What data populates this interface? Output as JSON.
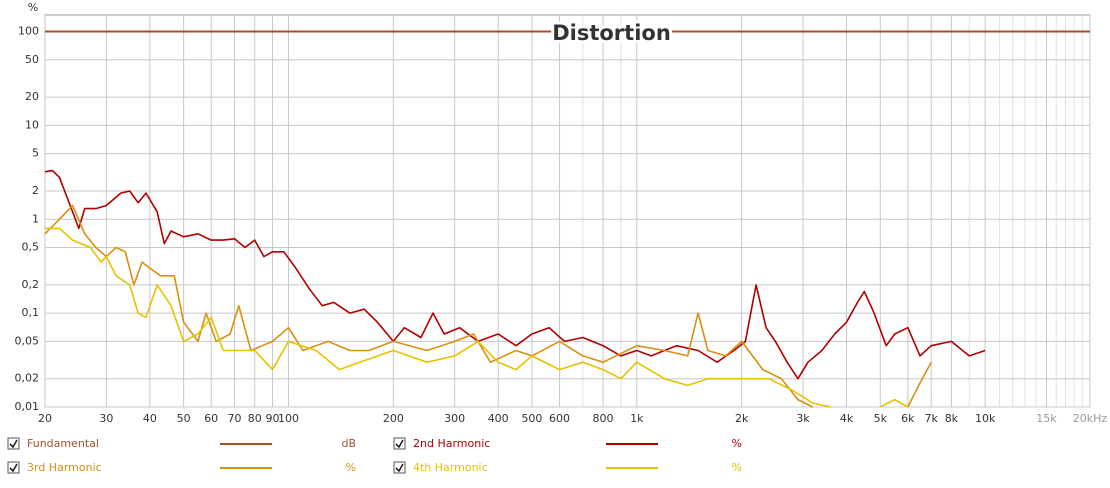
{
  "chart_data": {
    "type": "line",
    "title": "Distortion",
    "y_unit": "%",
    "xscale": "log",
    "yscale": "log",
    "grid": true,
    "xlim": [
      20,
      20000
    ],
    "ylim": [
      0.01,
      150
    ],
    "xticks": [
      20,
      30,
      40,
      50,
      60,
      70,
      80,
      90,
      100,
      200,
      300,
      400,
      500,
      600,
      800,
      {
        "value": 1000,
        "label": "1k"
      },
      {
        "value": 2000,
        "label": "2k"
      },
      {
        "value": 3000,
        "label": "3k"
      },
      {
        "value": 4000,
        "label": "4k"
      },
      {
        "value": 5000,
        "label": "5k"
      },
      {
        "value": 6000,
        "label": "6k"
      },
      {
        "value": 7000,
        "label": "7k"
      },
      {
        "value": 8000,
        "label": "8k"
      },
      {
        "value": 10000,
        "label": "10k"
      },
      {
        "value": 15000,
        "label": "15k"
      },
      {
        "value": 20000,
        "label": "20kHz"
      }
    ],
    "xgrid_minor": [
      700,
      900,
      9000,
      11000,
      12000,
      13000,
      14000,
      16000,
      17000,
      18000,
      19000
    ],
    "yticks": [
      100,
      50,
      20,
      10,
      5,
      2,
      1,
      {
        "value": 0.5,
        "label": "0,5"
      },
      {
        "value": 0.2,
        "label": "0,2"
      },
      {
        "value": 0.1,
        "label": "0,1"
      },
      {
        "value": 0.05,
        "label": "0,05"
      },
      {
        "value": 0.02,
        "label": "0,02"
      },
      {
        "value": 0.01,
        "label": "0,01"
      }
    ],
    "series": [
      {
        "name": "Fundamental",
        "unit": "dB",
        "color": "#a0522d",
        "x": [
          20,
          20000
        ],
        "values": [
          100,
          100
        ]
      },
      {
        "name": "2nd Harmonic",
        "unit": "%",
        "color": "#b00000",
        "x": [
          20,
          21,
          22,
          24,
          25,
          26,
          28,
          30,
          33,
          35,
          37,
          39,
          42,
          44,
          46,
          50,
          55,
          60,
          65,
          70,
          75,
          80,
          85,
          90,
          97,
          105,
          115,
          125,
          135,
          150,
          165,
          180,
          200,
          215,
          240,
          260,
          280,
          310,
          350,
          400,
          450,
          500,
          560,
          620,
          700,
          800,
          900,
          1000,
          1100,
          1200,
          1300,
          1500,
          1700,
          1900,
          2050,
          2200,
          2350,
          2500,
          2700,
          2900,
          3100,
          3400,
          3700,
          4000,
          4300,
          4500,
          4800,
          5200,
          5500,
          6000,
          6500,
          7000,
          8000,
          9000,
          10000
        ],
        "values": [
          3.2,
          3.3,
          2.8,
          1.2,
          0.8,
          1.3,
          1.3,
          1.4,
          1.9,
          2.0,
          1.5,
          1.9,
          1.2,
          0.55,
          0.75,
          0.65,
          0.7,
          0.6,
          0.6,
          0.62,
          0.5,
          0.6,
          0.4,
          0.45,
          0.45,
          0.3,
          0.18,
          0.12,
          0.13,
          0.1,
          0.11,
          0.08,
          0.05,
          0.07,
          0.055,
          0.1,
          0.06,
          0.07,
          0.05,
          0.06,
          0.045,
          0.06,
          0.07,
          0.05,
          0.055,
          0.045,
          0.035,
          0.04,
          0.035,
          0.04,
          0.045,
          0.04,
          0.03,
          0.04,
          0.05,
          0.2,
          0.07,
          0.05,
          0.03,
          0.02,
          0.03,
          0.04,
          0.06,
          0.08,
          0.13,
          0.17,
          0.1,
          0.045,
          0.06,
          0.07,
          0.035,
          0.045,
          0.05,
          0.035,
          0.04
        ]
      },
      {
        "name": "3rd Harmonic",
        "unit": "%",
        "color": "#d89010",
        "x": [
          20,
          22,
          24,
          26,
          28,
          30,
          32,
          34,
          36,
          38,
          40,
          43,
          47,
          50,
          55,
          58,
          62,
          68,
          72,
          78,
          90,
          100,
          110,
          130,
          150,
          170,
          200,
          250,
          300,
          340,
          380,
          450,
          500,
          600,
          700,
          800,
          1000,
          1200,
          1400,
          1500,
          1600,
          1800,
          2000,
          2300,
          2600,
          2900,
          3200,
          4500,
          6000,
          6500,
          7000
        ],
        "values": [
          0.7,
          1.0,
          1.4,
          0.7,
          0.5,
          0.4,
          0.5,
          0.45,
          0.2,
          0.35,
          0.3,
          0.25,
          0.25,
          0.08,
          0.05,
          0.1,
          0.05,
          0.06,
          0.12,
          0.04,
          0.05,
          0.07,
          0.04,
          0.05,
          0.04,
          0.04,
          0.05,
          0.04,
          0.05,
          0.06,
          0.03,
          0.04,
          0.035,
          0.05,
          0.035,
          0.03,
          0.045,
          0.04,
          0.035,
          0.1,
          0.04,
          0.035,
          0.05,
          0.025,
          0.02,
          0.012,
          0.01,
          null,
          0.01,
          0.018,
          0.03
        ]
      },
      {
        "name": "4th Harmonic",
        "unit": "%",
        "color": "#e6c200",
        "x": [
          20,
          22,
          24,
          27,
          29,
          30,
          32,
          35,
          37,
          39,
          42,
          46,
          50,
          55,
          60,
          65,
          70,
          80,
          90,
          100,
          120,
          140,
          160,
          200,
          250,
          300,
          350,
          400,
          450,
          500,
          600,
          700,
          800,
          900,
          1000,
          1200,
          1400,
          1600,
          2000,
          2400,
          2800,
          3200,
          3600,
          4500,
          5000,
          5500,
          6000
        ],
        "values": [
          0.8,
          0.8,
          0.6,
          0.5,
          0.35,
          0.4,
          0.25,
          0.2,
          0.1,
          0.09,
          0.2,
          0.12,
          0.05,
          0.06,
          0.09,
          0.04,
          0.04,
          0.04,
          0.025,
          0.05,
          0.04,
          0.025,
          0.03,
          0.04,
          0.03,
          0.035,
          0.05,
          0.03,
          0.025,
          0.035,
          0.025,
          0.03,
          0.025,
          0.02,
          0.03,
          0.02,
          0.017,
          0.02,
          0.02,
          0.02,
          0.015,
          0.011,
          0.01,
          null,
          0.01,
          0.012,
          0.01
        ]
      }
    ]
  }
}
